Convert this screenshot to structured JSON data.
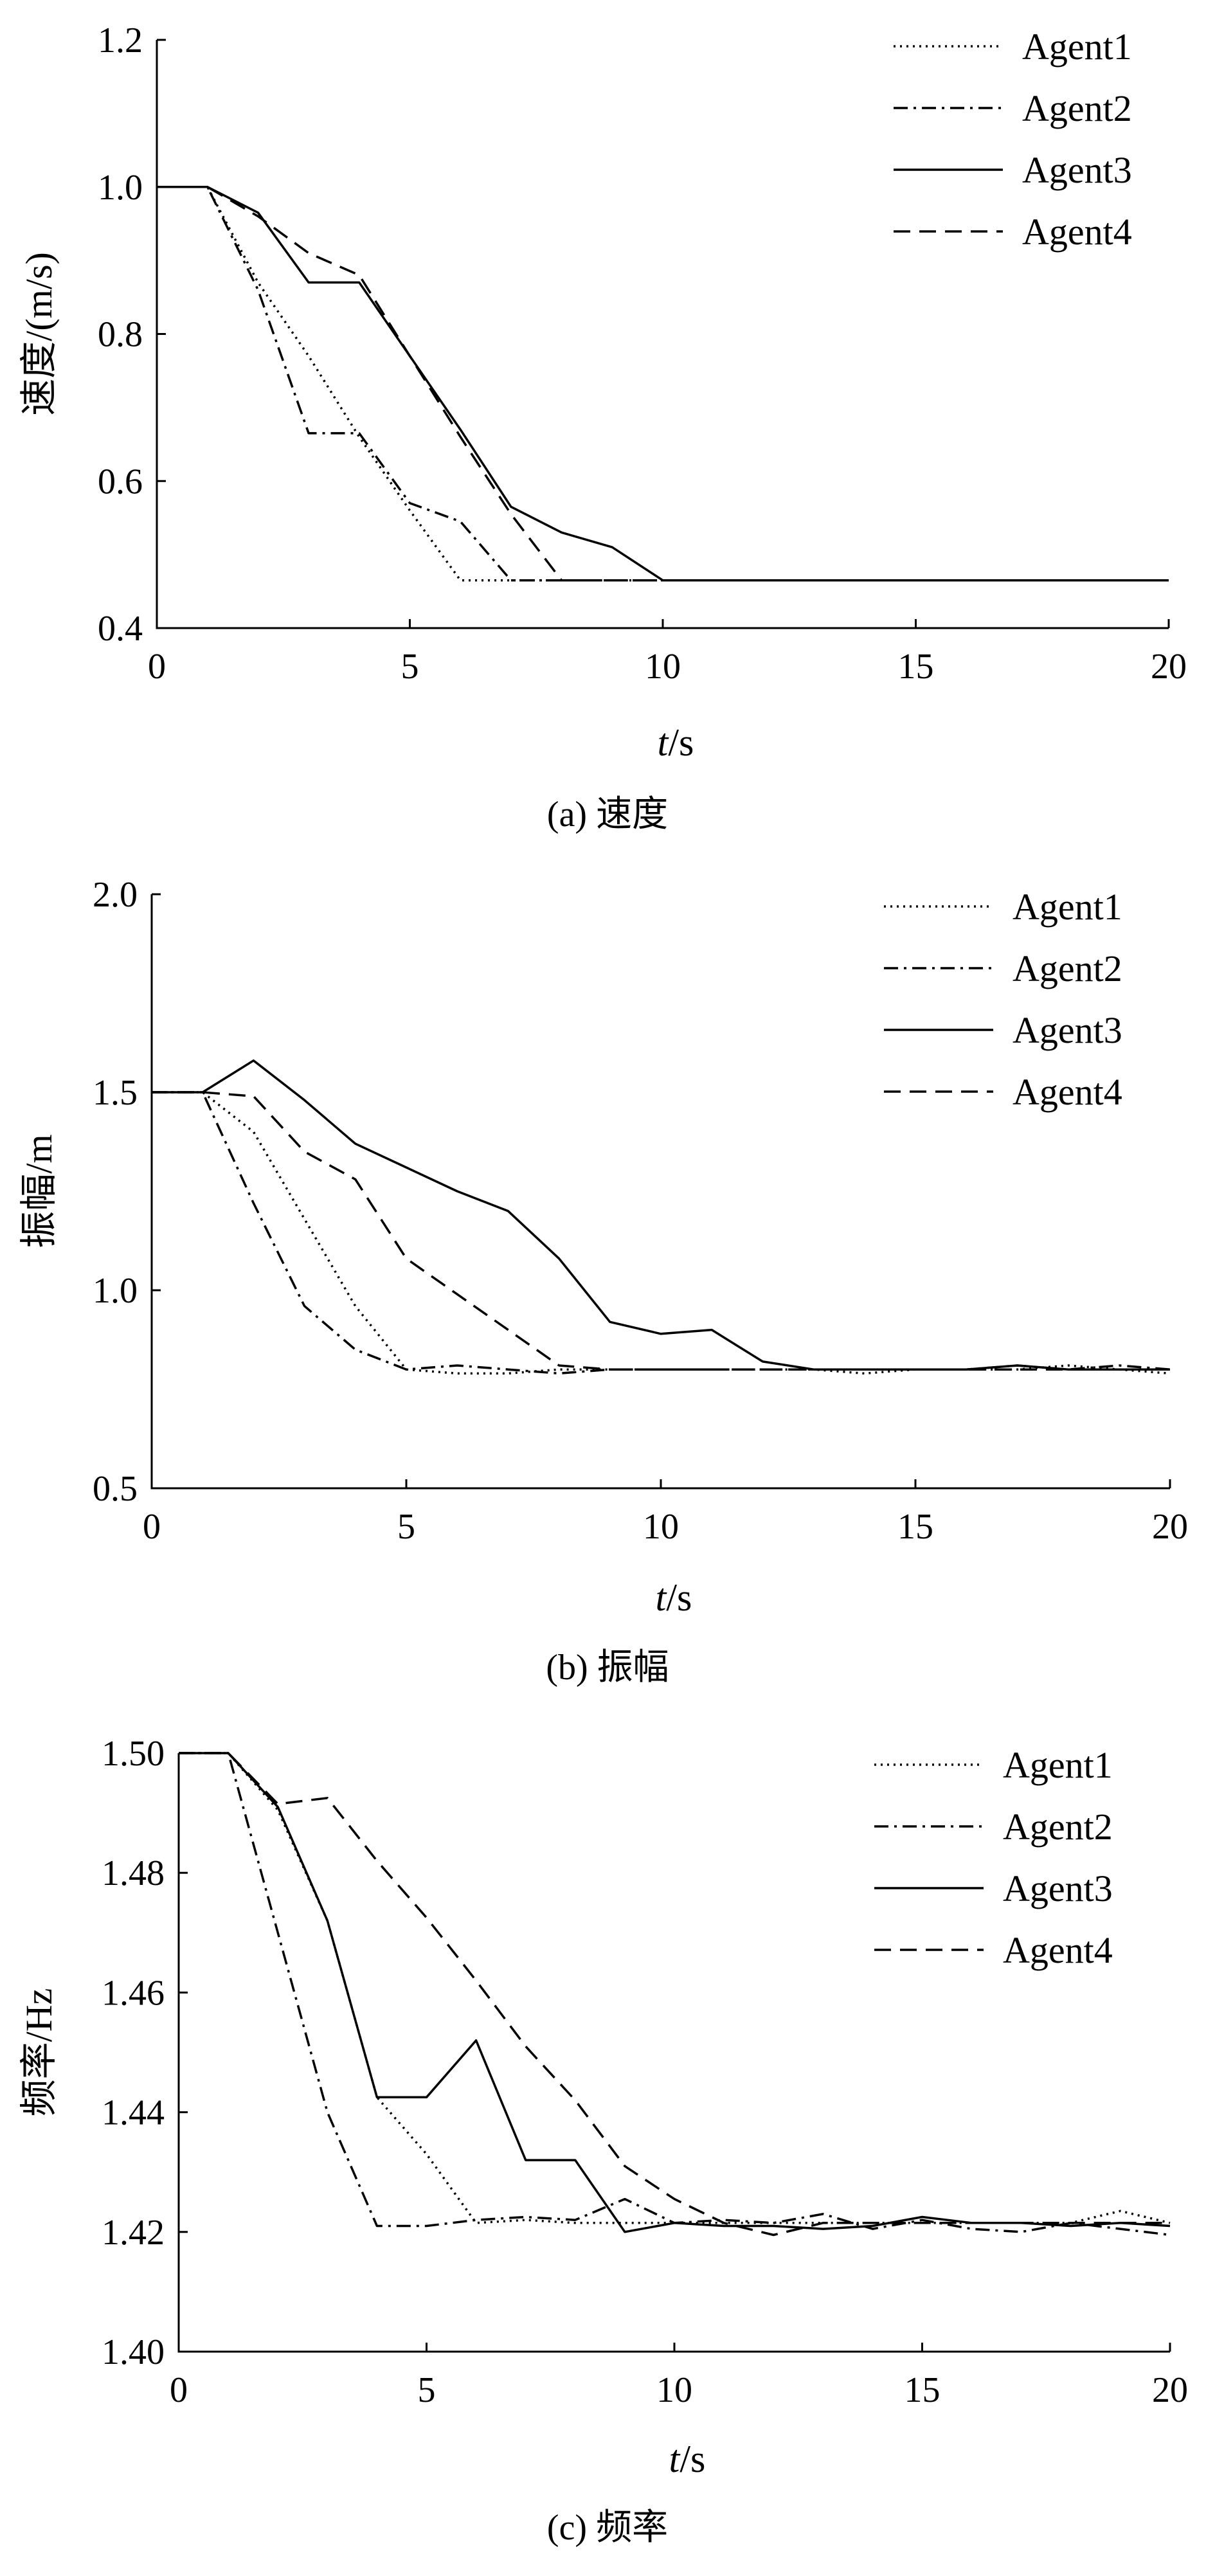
{
  "chart_data": [
    {
      "type": "line",
      "caption": "(a) 速度",
      "xlabel_italic": "t",
      "xlabel_unit": "/s",
      "ylabel": "速度/(m/s)",
      "xlim": [
        0,
        20
      ],
      "ylim": [
        0.4,
        1.2
      ],
      "xticks": [
        0,
        5,
        10,
        15,
        20
      ],
      "xtick_labels": [
        "0",
        "5",
        "10",
        "15",
        "20"
      ],
      "yticks": [
        0.4,
        0.6,
        0.8,
        1.0,
        1.2
      ],
      "ytick_labels": [
        "0.4",
        "0.6",
        "0.8",
        "1.0",
        "1.2"
      ],
      "legend_position": "top-right",
      "series": [
        {
          "name": "Agent1",
          "style": "dotted",
          "x": [
            0,
            1,
            2,
            3,
            4,
            5,
            6,
            7,
            8,
            9,
            10,
            11,
            12,
            13,
            14,
            15,
            16,
            17,
            18,
            19,
            20
          ],
          "y": [
            1.0,
            1.0,
            0.87,
            0.77,
            0.66,
            0.56,
            0.465,
            0.465,
            0.465,
            0.465,
            0.465,
            0.465,
            0.465,
            0.465,
            0.465,
            0.465,
            0.465,
            0.465,
            0.465,
            0.465,
            0.465
          ]
        },
        {
          "name": "Agent2",
          "style": "dashdot",
          "x": [
            0,
            1,
            2,
            3,
            4,
            5,
            6,
            7,
            8,
            9,
            10,
            11,
            12,
            13,
            14,
            15,
            16,
            17,
            18,
            19,
            20
          ],
          "y": [
            1.0,
            1.0,
            0.86,
            0.665,
            0.665,
            0.57,
            0.545,
            0.465,
            0.465,
            0.465,
            0.465,
            0.465,
            0.465,
            0.465,
            0.465,
            0.465,
            0.465,
            0.465,
            0.465,
            0.465,
            0.465
          ]
        },
        {
          "name": "Agent3",
          "style": "solid",
          "x": [
            0,
            1,
            2,
            3,
            4,
            5,
            6,
            7,
            8,
            9,
            10,
            11,
            12,
            13,
            14,
            15,
            16,
            17,
            18,
            19,
            20
          ],
          "y": [
            1.0,
            1.0,
            0.965,
            0.87,
            0.87,
            0.77,
            0.67,
            0.565,
            0.53,
            0.51,
            0.465,
            0.465,
            0.465,
            0.465,
            0.465,
            0.465,
            0.465,
            0.465,
            0.465,
            0.465,
            0.465
          ]
        },
        {
          "name": "Agent4",
          "style": "dashed",
          "x": [
            0,
            1,
            2,
            3,
            4,
            5,
            6,
            7,
            8,
            9,
            10,
            11,
            12,
            13,
            14,
            15,
            16,
            17,
            18,
            19,
            20
          ],
          "y": [
            1.0,
            1.0,
            0.96,
            0.91,
            0.88,
            0.77,
            0.66,
            0.555,
            0.465,
            0.465,
            0.465,
            0.465,
            0.465,
            0.465,
            0.465,
            0.465,
            0.465,
            0.465,
            0.465,
            0.465,
            0.465
          ]
        }
      ]
    },
    {
      "type": "line",
      "caption": "(b) 振幅",
      "xlabel_italic": "t",
      "xlabel_unit": "/s",
      "ylabel": "振幅/m",
      "xlim": [
        0,
        20
      ],
      "ylim": [
        0.5,
        2.0
      ],
      "xticks": [
        0,
        5,
        10,
        15,
        20
      ],
      "xtick_labels": [
        "0",
        "5",
        "10",
        "15",
        "20"
      ],
      "yticks": [
        0.5,
        1.0,
        1.5,
        2.0
      ],
      "ytick_labels": [
        "0.5",
        "1.0",
        "1.5",
        "2.0"
      ],
      "legend_position": "top-right",
      "series": [
        {
          "name": "Agent1",
          "style": "dotted",
          "x": [
            0,
            1,
            2,
            3,
            4,
            5,
            6,
            7,
            8,
            9,
            10,
            11,
            12,
            13,
            14,
            15,
            16,
            17,
            18,
            19,
            20
          ],
          "y": [
            1.5,
            1.5,
            1.4,
            1.18,
            0.96,
            0.8,
            0.79,
            0.79,
            0.8,
            0.8,
            0.8,
            0.8,
            0.8,
            0.8,
            0.79,
            0.8,
            0.8,
            0.8,
            0.81,
            0.8,
            0.79
          ]
        },
        {
          "name": "Agent2",
          "style": "dashdot",
          "x": [
            0,
            1,
            2,
            3,
            4,
            5,
            6,
            7,
            8,
            9,
            10,
            11,
            12,
            13,
            14,
            15,
            16,
            17,
            18,
            19,
            20
          ],
          "y": [
            1.5,
            1.5,
            1.22,
            0.96,
            0.85,
            0.8,
            0.81,
            0.8,
            0.79,
            0.8,
            0.8,
            0.8,
            0.8,
            0.8,
            0.8,
            0.8,
            0.8,
            0.81,
            0.8,
            0.81,
            0.8
          ]
        },
        {
          "name": "Agent3",
          "style": "solid",
          "x": [
            0,
            1,
            2,
            3,
            4,
            5,
            6,
            7,
            8,
            9,
            10,
            11,
            12,
            13,
            14,
            15,
            16,
            17,
            18,
            19,
            20
          ],
          "y": [
            1.5,
            1.5,
            1.58,
            1.48,
            1.37,
            1.31,
            1.25,
            1.2,
            1.08,
            0.92,
            0.89,
            0.9,
            0.82,
            0.8,
            0.8,
            0.8,
            0.8,
            0.81,
            0.8,
            0.8,
            0.8
          ]
        },
        {
          "name": "Agent4",
          "style": "dashed",
          "x": [
            0,
            1,
            2,
            3,
            4,
            5,
            6,
            7,
            8,
            9,
            10,
            11,
            12,
            13,
            14,
            15,
            16,
            17,
            18,
            19,
            20
          ],
          "y": [
            1.5,
            1.5,
            1.49,
            1.35,
            1.28,
            1.08,
            0.99,
            0.9,
            0.81,
            0.8,
            0.8,
            0.8,
            0.8,
            0.8,
            0.8,
            0.8,
            0.8,
            0.8,
            0.8,
            0.8,
            0.8
          ]
        }
      ]
    },
    {
      "type": "line",
      "caption": "(c) 频率",
      "xlabel_italic": "t",
      "xlabel_unit": "/s",
      "ylabel": "频率/Hz",
      "xlim": [
        0,
        20
      ],
      "ylim": [
        1.4,
        1.5
      ],
      "xticks": [
        0,
        5,
        10,
        15,
        20
      ],
      "xtick_labels": [
        "0",
        "5",
        "10",
        "15",
        "20"
      ],
      "yticks": [
        1.4,
        1.42,
        1.44,
        1.46,
        1.48,
        1.5
      ],
      "ytick_labels": [
        "1.40",
        "1.42",
        "1.44",
        "1.46",
        "1.48",
        "1.50"
      ],
      "legend_position": "top-right",
      "series": [
        {
          "name": "Agent1",
          "style": "dotted",
          "x": [
            0,
            1,
            2,
            3,
            4,
            5,
            6,
            7,
            8,
            9,
            10,
            11,
            12,
            13,
            14,
            15,
            16,
            17,
            18,
            19,
            20
          ],
          "y": [
            1.5,
            1.5,
            1.4905,
            1.472,
            1.4425,
            1.433,
            1.4215,
            1.422,
            1.4215,
            1.4215,
            1.4215,
            1.4215,
            1.4215,
            1.4215,
            1.4215,
            1.4215,
            1.4215,
            1.4215,
            1.4215,
            1.4235,
            1.4215
          ]
        },
        {
          "name": "Agent2",
          "style": "dashdot",
          "x": [
            0,
            1,
            2,
            3,
            4,
            5,
            6,
            7,
            8,
            9,
            10,
            11,
            12,
            13,
            14,
            15,
            16,
            17,
            18,
            19,
            20
          ],
          "y": [
            1.5,
            1.5,
            1.47,
            1.44,
            1.421,
            1.421,
            1.422,
            1.4225,
            1.422,
            1.4255,
            1.4215,
            1.422,
            1.4215,
            1.423,
            1.4205,
            1.422,
            1.4205,
            1.42,
            1.4215,
            1.4205,
            1.4195
          ]
        },
        {
          "name": "Agent3",
          "style": "solid",
          "x": [
            0,
            1,
            2,
            3,
            4,
            5,
            6,
            7,
            8,
            9,
            10,
            11,
            12,
            13,
            14,
            15,
            16,
            17,
            18,
            19,
            20
          ],
          "y": [
            1.5,
            1.5,
            1.491,
            1.472,
            1.4425,
            1.4425,
            1.452,
            1.432,
            1.432,
            1.42,
            1.4215,
            1.421,
            1.421,
            1.4205,
            1.421,
            1.4225,
            1.4215,
            1.4215,
            1.421,
            1.4215,
            1.421
          ]
        },
        {
          "name": "Agent4",
          "style": "dashed",
          "x": [
            0,
            1,
            2,
            3,
            4,
            5,
            6,
            7,
            8,
            9,
            10,
            11,
            12,
            13,
            14,
            15,
            16,
            17,
            18,
            19,
            20
          ],
          "y": [
            1.5,
            1.5,
            1.4915,
            1.4925,
            1.482,
            1.4725,
            1.462,
            1.451,
            1.442,
            1.431,
            1.4255,
            1.4215,
            1.4195,
            1.4215,
            1.4215,
            1.4215,
            1.4215,
            1.4215,
            1.4215,
            1.4215,
            1.4215
          ]
        }
      ]
    }
  ]
}
